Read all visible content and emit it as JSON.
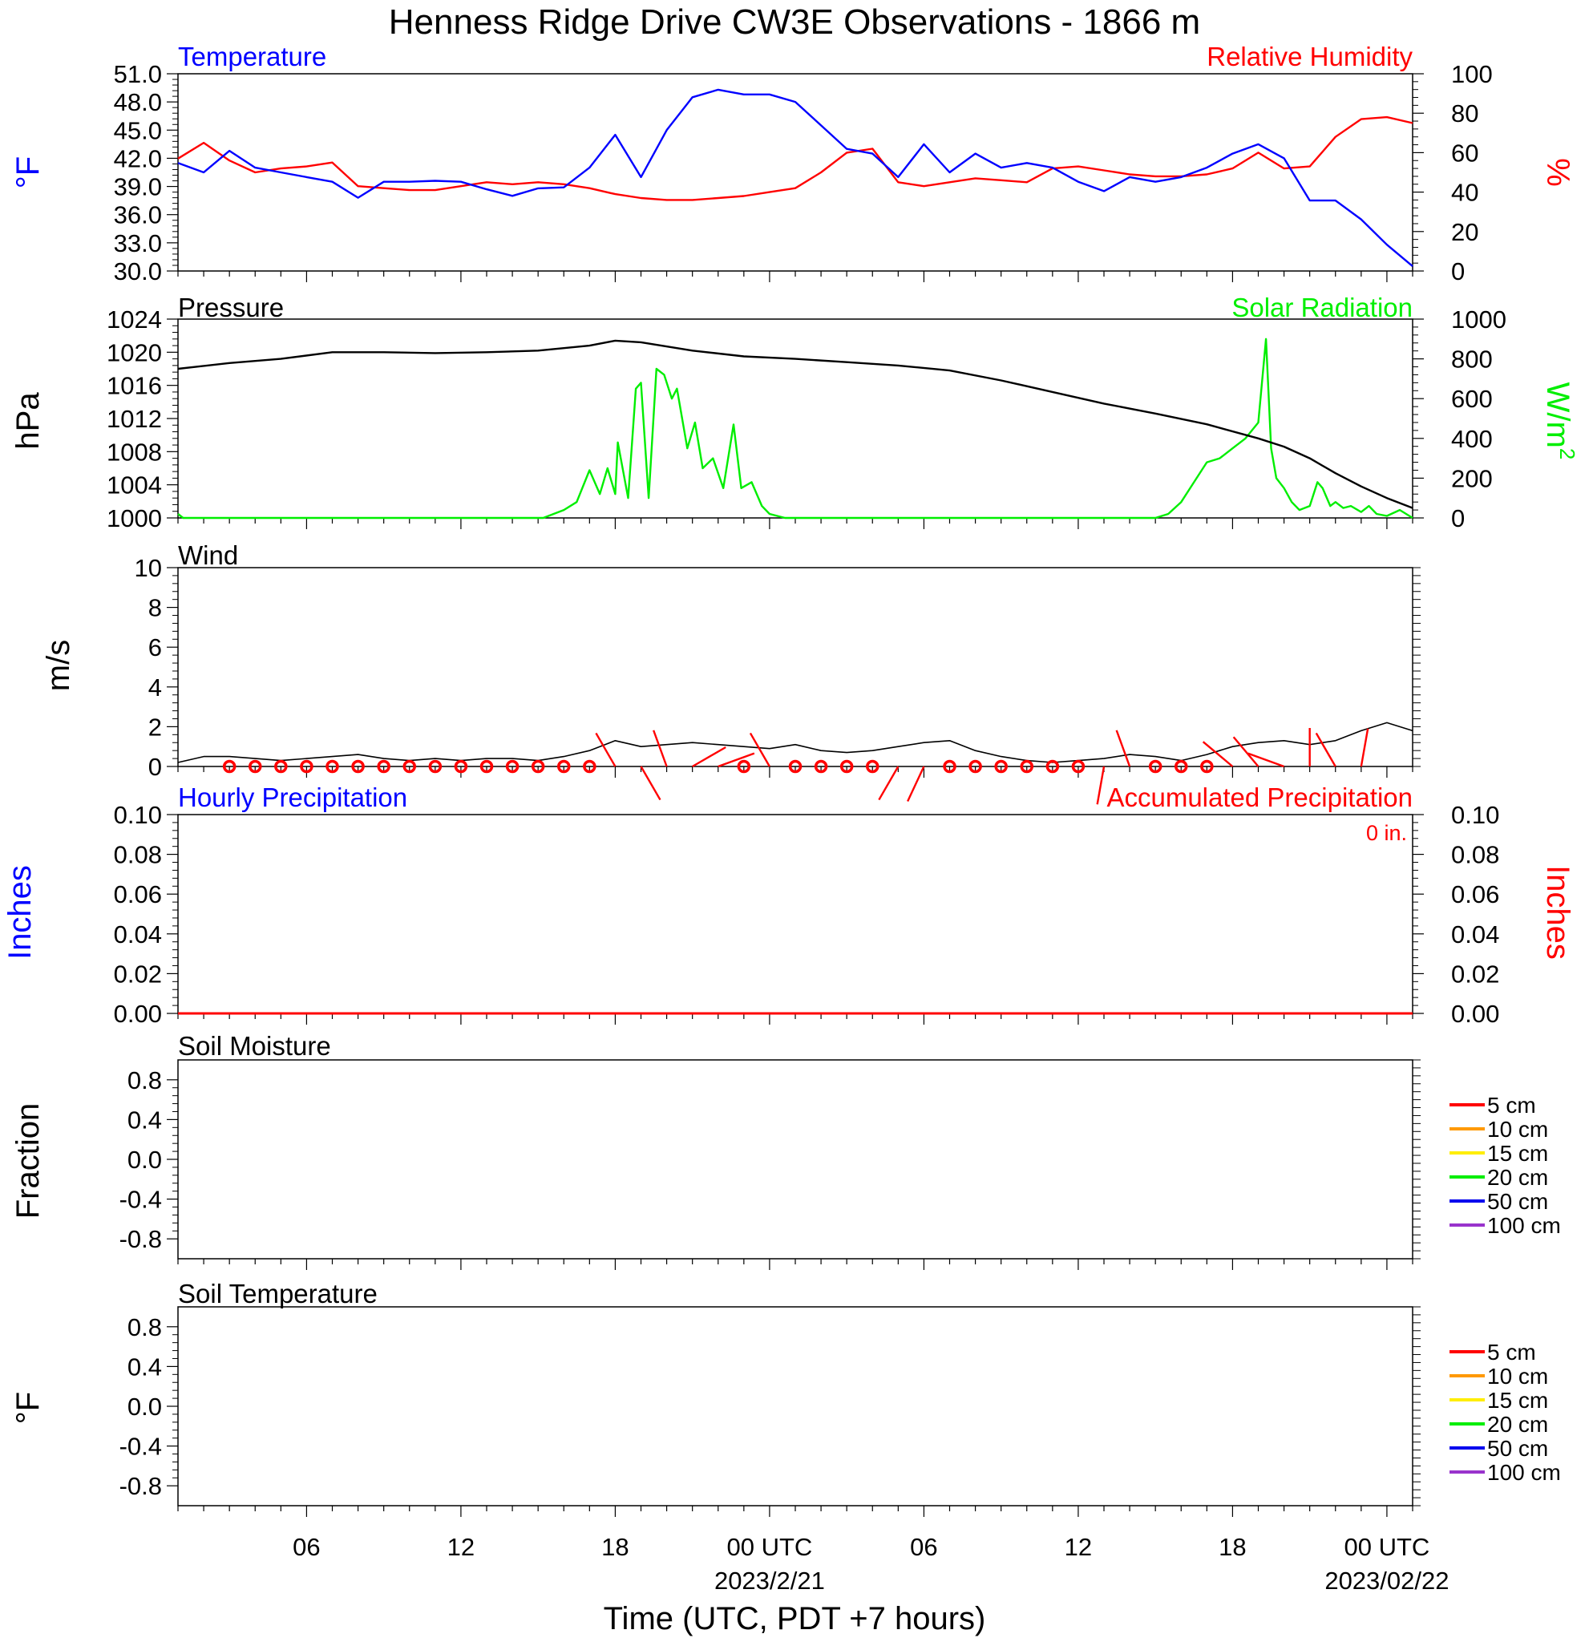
{
  "title": "Henness Ridge Drive CW3E Observations - 1866 m",
  "x_axis": {
    "label": "Time (UTC, PDT +7 hours)",
    "range_hours": [
      0,
      48
    ],
    "ticks": [
      {
        "hour": 5,
        "label": "06",
        "sublabel": ""
      },
      {
        "hour": 11,
        "label": "12",
        "sublabel": ""
      },
      {
        "hour": 17,
        "label": "18",
        "sublabel": ""
      },
      {
        "hour": 23,
        "label": "00 UTC",
        "sublabel": "2023/2/21"
      },
      {
        "hour": 29,
        "label": "06",
        "sublabel": ""
      },
      {
        "hour": 35,
        "label": "12",
        "sublabel": ""
      },
      {
        "hour": 41,
        "label": "18",
        "sublabel": ""
      },
      {
        "hour": 47,
        "label": "00 UTC",
        "sublabel": "2023/02/22"
      }
    ]
  },
  "colors": {
    "temperature": "#0000ff",
    "humidity": "#ff0000",
    "pressure": "#000000",
    "solar": "#00ee00",
    "wind": "#000000",
    "wind_barb": "#ff0000",
    "hourly_precip": "#0000ff",
    "accum_precip": "#ff0000",
    "soil_5": "#ff0000",
    "soil_10": "#ff9900",
    "soil_15": "#ffee00",
    "soil_20": "#00ee00",
    "soil_50": "#0000ee",
    "soil_100": "#9933cc"
  },
  "panels": {
    "temp_rh": {
      "left_title": "Temperature",
      "right_title": "Relative Humidity",
      "left_unit": "°F",
      "right_unit": "%",
      "left_ticks": [
        "51.0",
        "48.0",
        "45.0",
        "42.0",
        "39.0",
        "36.0",
        "33.0",
        "30.0"
      ],
      "right_ticks": [
        "100",
        "80",
        "60",
        "40",
        "20",
        "0"
      ]
    },
    "pressure_solar": {
      "left_title": "Pressure",
      "right_title": "Solar Radiation",
      "left_unit": "hPa",
      "right_unit": "W/m",
      "right_unit_sup": "2",
      "left_ticks": [
        "1024",
        "1020",
        "1016",
        "1012",
        "1008",
        "1004",
        "1000"
      ],
      "right_ticks": [
        "1000",
        "800",
        "600",
        "400",
        "200",
        "0"
      ]
    },
    "wind": {
      "left_title": "Wind",
      "left_unit": "m/s",
      "left_ticks": [
        "10",
        "8",
        "6",
        "4",
        "2",
        "0"
      ]
    },
    "precip": {
      "left_title": "Hourly Precipitation",
      "right_title": "Accumulated Precipitation",
      "total_label": "0 in.",
      "left_unit": "Inches",
      "right_unit": "Inches",
      "left_ticks": [
        "0.10",
        "0.08",
        "0.06",
        "0.04",
        "0.02",
        "0.00"
      ],
      "right_ticks": [
        "0.10",
        "0.08",
        "0.06",
        "0.04",
        "0.02",
        "0.00"
      ]
    },
    "soil_moisture": {
      "left_title": "Soil Moisture",
      "left_unit": "Fraction",
      "left_ticks": [
        "0.8",
        "0.4",
        "0.0",
        "-0.4",
        "-0.8"
      ],
      "legend": [
        "5 cm",
        "10 cm",
        "15 cm",
        "20 cm",
        "50 cm",
        "100 cm"
      ]
    },
    "soil_temperature": {
      "left_title": "Soil Temperature",
      "left_unit": "°F",
      "left_ticks": [
        "0.8",
        "0.4",
        "0.0",
        "-0.4",
        "-0.8"
      ],
      "legend": [
        "5 cm",
        "10 cm",
        "15 cm",
        "20 cm",
        "50 cm",
        "100 cm"
      ]
    }
  },
  "chart_data": [
    {
      "type": "line",
      "title": "Temperature",
      "ylabel": "°F",
      "ylim": [
        30,
        51
      ],
      "x_hours": [
        0,
        1,
        2,
        3,
        4,
        5,
        6,
        7,
        8,
        9,
        10,
        11,
        12,
        13,
        14,
        15,
        16,
        17,
        18,
        19,
        20,
        21,
        22,
        23,
        24,
        25,
        26,
        27,
        28,
        29,
        30,
        31,
        32,
        33,
        34,
        35,
        36,
        37,
        38,
        39,
        40,
        41,
        42,
        43,
        44,
        45,
        46,
        47,
        48
      ],
      "series": [
        {
          "name": "Temperature",
          "values": [
            41.5,
            40.5,
            42.8,
            41.0,
            40.5,
            40.0,
            39.5,
            37.8,
            39.5,
            39.5,
            39.6,
            39.5,
            38.7,
            38.0,
            38.8,
            38.9,
            41.0,
            44.5,
            40.0,
            45.0,
            48.5,
            49.3,
            48.8,
            48.8,
            48.0,
            45.5,
            43.0,
            42.5,
            40.0,
            43.5,
            40.5,
            42.5,
            41.0,
            41.5,
            41.0,
            39.5,
            38.5,
            40.0,
            39.5,
            40.0,
            41.0,
            42.5,
            43.5,
            42.0,
            37.5,
            37.5,
            35.5,
            32.8,
            30.5
          ]
        }
      ]
    },
    {
      "type": "line",
      "title": "Relative Humidity",
      "ylabel": "%",
      "ylim": [
        0,
        100
      ],
      "x_hours": [
        0,
        1,
        2,
        3,
        4,
        5,
        6,
        7,
        8,
        9,
        10,
        11,
        12,
        13,
        14,
        15,
        16,
        17,
        18,
        19,
        20,
        21,
        22,
        23,
        24,
        25,
        26,
        27,
        28,
        29,
        30,
        31,
        32,
        33,
        34,
        35,
        36,
        37,
        38,
        39,
        40,
        41,
        42,
        43,
        44,
        45,
        46,
        47,
        48
      ],
      "series": [
        {
          "name": "Relative Humidity",
          "values": [
            57,
            65,
            56,
            50,
            52,
            53,
            55,
            43,
            42,
            41,
            41,
            43,
            45,
            44,
            45,
            44,
            42,
            39,
            37,
            36,
            36,
            37,
            38,
            40,
            42,
            50,
            60,
            62,
            45,
            43,
            45,
            47,
            46,
            45,
            52,
            53,
            51,
            49,
            48,
            48,
            49,
            52,
            60,
            52,
            53,
            68,
            77,
            78,
            75
          ]
        }
      ]
    },
    {
      "type": "line",
      "title": "Pressure",
      "ylabel": "hPa",
      "ylim": [
        1000,
        1024
      ],
      "x_hours": [
        0,
        2,
        4,
        6,
        8,
        10,
        12,
        14,
        16,
        17,
        18,
        20,
        22,
        24,
        26,
        28,
        30,
        32,
        34,
        36,
        38,
        40,
        42,
        43,
        44,
        45,
        46,
        47,
        48
      ],
      "series": [
        {
          "name": "Pressure",
          "values": [
            1018.0,
            1018.7,
            1019.2,
            1020.0,
            1020.0,
            1019.9,
            1020.0,
            1020.2,
            1020.8,
            1021.4,
            1021.2,
            1020.2,
            1019.5,
            1019.2,
            1018.8,
            1018.4,
            1017.8,
            1016.6,
            1015.2,
            1013.8,
            1012.6,
            1011.3,
            1009.6,
            1008.6,
            1007.2,
            1005.4,
            1003.8,
            1002.4,
            1001.2
          ]
        }
      ]
    },
    {
      "type": "line",
      "title": "Solar Radiation",
      "ylabel": "W/m2",
      "ylim": [
        0,
        1000
      ],
      "x_hours": [
        0,
        0.2,
        1,
        13,
        14.2,
        15,
        15.5,
        16,
        16.4,
        16.7,
        17,
        17.1,
        17.5,
        17.8,
        18,
        18.3,
        18.6,
        18.9,
        19.2,
        19.4,
        19.8,
        20.1,
        20.4,
        20.8,
        21.2,
        21.6,
        21.9,
        22.3,
        22.7,
        23,
        23.3,
        23.6,
        24,
        25,
        29,
        38,
        38.5,
        39,
        39.5,
        40,
        40.5,
        41,
        41.5,
        42,
        42.3,
        42.5,
        42.7,
        43,
        43.3,
        43.6,
        44,
        44.3,
        44.5,
        44.8,
        45,
        45.3,
        45.6,
        46,
        46.3,
        46.6,
        47,
        47.5,
        48
      ],
      "series": [
        {
          "name": "Solar Radiation",
          "values": [
            20,
            0,
            0,
            0,
            0,
            40,
            80,
            240,
            120,
            250,
            120,
            380,
            100,
            650,
            680,
            100,
            750,
            720,
            600,
            650,
            350,
            480,
            250,
            300,
            150,
            470,
            150,
            180,
            60,
            20,
            10,
            0,
            0,
            0,
            0,
            0,
            20,
            80,
            180,
            280,
            300,
            350,
            400,
            480,
            900,
            350,
            200,
            150,
            80,
            40,
            60,
            180,
            150,
            60,
            80,
            50,
            60,
            30,
            60,
            20,
            10,
            40,
            0
          ]
        }
      ]
    },
    {
      "type": "line",
      "title": "Wind",
      "ylabel": "m/s",
      "ylim": [
        0,
        10
      ],
      "x_hours": [
        0,
        1,
        2,
        3,
        4,
        5,
        6,
        7,
        8,
        9,
        10,
        11,
        12,
        13,
        14,
        15,
        16,
        17,
        18,
        19,
        20,
        21,
        22,
        23,
        24,
        25,
        26,
        27,
        28,
        29,
        30,
        31,
        32,
        33,
        34,
        35,
        36,
        37,
        38,
        39,
        40,
        41,
        42,
        43,
        44,
        45,
        46,
        47,
        48
      ],
      "series": [
        {
          "name": "Wind",
          "values": [
            0.2,
            0.5,
            0.5,
            0.4,
            0.3,
            0.4,
            0.5,
            0.6,
            0.4,
            0.3,
            0.4,
            0.3,
            0.4,
            0.4,
            0.3,
            0.5,
            0.8,
            1.3,
            1.0,
            1.1,
            1.2,
            1.1,
            1.0,
            0.9,
            1.1,
            0.8,
            0.7,
            0.8,
            1.0,
            1.2,
            1.3,
            0.8,
            0.5,
            0.3,
            0.2,
            0.3,
            0.4,
            0.6,
            0.5,
            0.3,
            0.6,
            1.0,
            1.2,
            1.3,
            1.1,
            1.3,
            1.8,
            2.2,
            1.8
          ]
        }
      ]
    },
    {
      "type": "line",
      "title": "Hourly Precipitation",
      "ylabel": "Inches",
      "ylim": [
        0,
        0.1
      ],
      "x_hours": [
        0,
        48
      ],
      "series": [
        {
          "name": "Hourly Precipitation",
          "values": [
            0,
            0
          ]
        },
        {
          "name": "Accumulated Precipitation",
          "values": [
            0,
            0
          ]
        }
      ]
    },
    {
      "type": "line",
      "title": "Soil Moisture",
      "ylabel": "Fraction",
      "ylim": [
        -1,
        1
      ],
      "series": []
    },
    {
      "type": "line",
      "title": "Soil Temperature",
      "ylabel": "°F",
      "ylim": [
        -1,
        1
      ],
      "series": []
    }
  ],
  "wind_barbs": [
    {
      "hour": 2,
      "dir": 0,
      "calm": true
    },
    {
      "hour": 3,
      "dir": 0,
      "calm": true
    },
    {
      "hour": 4,
      "dir": 0,
      "calm": true
    },
    {
      "hour": 5,
      "dir": 0,
      "calm": true
    },
    {
      "hour": 6,
      "dir": 0,
      "calm": true
    },
    {
      "hour": 7,
      "dir": 0,
      "calm": true
    },
    {
      "hour": 8,
      "dir": 0,
      "calm": true
    },
    {
      "hour": 9,
      "dir": 0,
      "calm": true
    },
    {
      "hour": 10,
      "dir": 0,
      "calm": true
    },
    {
      "hour": 11,
      "dir": 0,
      "calm": true
    },
    {
      "hour": 12,
      "dir": 0,
      "calm": true
    },
    {
      "hour": 13,
      "dir": 0,
      "calm": true
    },
    {
      "hour": 14,
      "dir": 0,
      "calm": true
    },
    {
      "hour": 15,
      "dir": 0,
      "calm": true
    },
    {
      "hour": 16,
      "dir": 0,
      "calm": true
    },
    {
      "hour": 17,
      "dir": 330,
      "calm": false
    },
    {
      "hour": 18,
      "dir": 150,
      "calm": false
    },
    {
      "hour": 19,
      "dir": 340,
      "calm": false
    },
    {
      "hour": 20,
      "dir": 60,
      "calm": false
    },
    {
      "hour": 21,
      "dir": 70,
      "calm": false
    },
    {
      "hour": 22,
      "dir": 0,
      "calm": true
    },
    {
      "hour": 23,
      "dir": 330,
      "calm": false
    },
    {
      "hour": 24,
      "dir": 0,
      "calm": true
    },
    {
      "hour": 25,
      "dir": 0,
      "calm": true
    },
    {
      "hour": 26,
      "dir": 0,
      "calm": true
    },
    {
      "hour": 27,
      "dir": 0,
      "calm": true
    },
    {
      "hour": 28,
      "dir": 210,
      "calm": false
    },
    {
      "hour": 29,
      "dir": 205,
      "calm": false
    },
    {
      "hour": 30,
      "dir": 0,
      "calm": true
    },
    {
      "hour": 31,
      "dir": 0,
      "calm": true
    },
    {
      "hour": 32,
      "dir": 0,
      "calm": true
    },
    {
      "hour": 33,
      "dir": 0,
      "calm": true
    },
    {
      "hour": 34,
      "dir": 0,
      "calm": true
    },
    {
      "hour": 35,
      "dir": 0,
      "calm": true
    },
    {
      "hour": 36,
      "dir": 190,
      "calm": false
    },
    {
      "hour": 37,
      "dir": 340,
      "calm": false
    },
    {
      "hour": 38,
      "dir": 0,
      "calm": true
    },
    {
      "hour": 39,
      "dir": 0,
      "calm": true
    },
    {
      "hour": 40,
      "dir": 0,
      "calm": true
    },
    {
      "hour": 41,
      "dir": 310,
      "calm": false
    },
    {
      "hour": 42,
      "dir": 320,
      "calm": false
    },
    {
      "hour": 43,
      "dir": 290,
      "calm": false
    },
    {
      "hour": 44,
      "dir": 0,
      "calm": false
    },
    {
      "hour": 45,
      "dir": 330,
      "calm": false
    },
    {
      "hour": 46,
      "dir": 10,
      "calm": false
    }
  ]
}
